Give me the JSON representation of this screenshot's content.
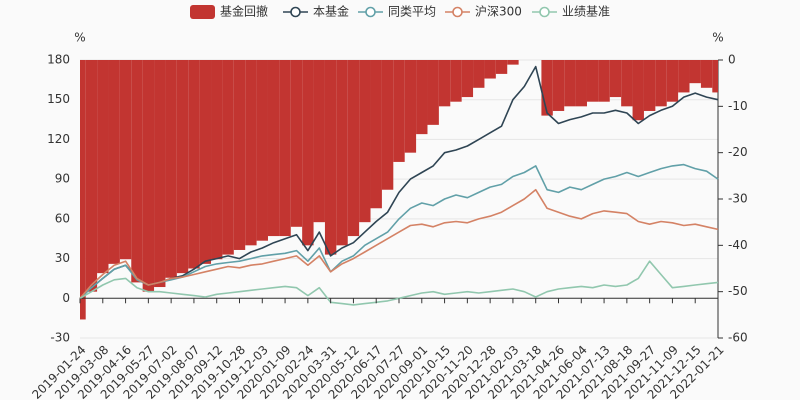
{
  "chart_data": {
    "type": "combo",
    "legend": "top",
    "grid": true,
    "y_label": "%",
    "y2_label": "%",
    "ylim": [
      -30,
      180
    ],
    "yticks": [
      -30,
      0,
      30,
      60,
      90,
      120,
      150,
      180
    ],
    "y2lim": [
      -60,
      0
    ],
    "y2ticks": [
      0,
      -10,
      -20,
      -30,
      -40,
      -50,
      -60
    ],
    "categories": [
      "2019-01-24",
      null,
      "2019-03-08",
      null,
      "2019-04-16",
      null,
      "2019-05-27",
      null,
      "2019-07-02",
      null,
      "2019-08-07",
      null,
      "2019-09-12",
      null,
      "2019-10-28",
      null,
      "2019-12-03",
      null,
      "2020-01-09",
      null,
      "2020-02-24",
      null,
      "2020-03-31",
      null,
      "2020-05-12",
      null,
      "2020-06-17",
      null,
      "2020-07-27",
      null,
      "2020-09-01",
      null,
      "2020-10-15",
      null,
      "2020-11-20",
      null,
      "2020-12-28",
      null,
      "2021-02-03",
      null,
      "2021-03-18",
      null,
      "2021-04-26",
      null,
      "2021-06-04",
      null,
      "2021-07-13",
      null,
      "2021-08-18",
      null,
      "2021-09-27",
      null,
      "2021-11-09",
      null,
      "2021-12-15",
      null,
      "2022-01-21"
    ],
    "series": [
      {
        "name": "基金回撤",
        "type": "bar",
        "axis": "y2",
        "color": "#c23531",
        "values": [
          -56,
          -50,
          -46,
          -44,
          -43,
          -48,
          -50,
          -49,
          -47,
          -46,
          -45,
          -44,
          -43,
          -42,
          -41,
          -40,
          -39,
          -38,
          -38,
          -36,
          -40,
          -35,
          -42,
          -40,
          -38,
          -35,
          -32,
          -28,
          -22,
          -20,
          -16,
          -14,
          -10,
          -9,
          -8,
          -6,
          -4,
          -3,
          -1,
          0,
          0,
          -12,
          -11,
          -10,
          -10,
          -9,
          -9,
          -8,
          -10,
          -13,
          -11,
          -10,
          -9,
          -7,
          -5,
          -6,
          -7
        ]
      },
      {
        "name": "本基金",
        "type": "line",
        "color": "#2f4554",
        "values": [
          0,
          8,
          15,
          22,
          25,
          15,
          10,
          12,
          15,
          17,
          22,
          28,
          30,
          32,
          30,
          35,
          38,
          42,
          45,
          48,
          36,
          50,
          32,
          38,
          42,
          50,
          58,
          65,
          80,
          90,
          95,
          100,
          110,
          112,
          115,
          120,
          125,
          130,
          150,
          160,
          175,
          140,
          132,
          135,
          137,
          140,
          140,
          142,
          140,
          132,
          138,
          142,
          145,
          152,
          155,
          152,
          150
        ]
      },
      {
        "name": "同类平均",
        "type": "line",
        "color": "#61a0a8",
        "values": [
          0,
          8,
          15,
          22,
          25,
          14,
          10,
          12,
          14,
          16,
          20,
          24,
          26,
          27,
          28,
          30,
          32,
          33,
          34,
          36,
          28,
          38,
          20,
          28,
          32,
          40,
          45,
          50,
          60,
          68,
          72,
          70,
          75,
          78,
          76,
          80,
          84,
          86,
          92,
          95,
          100,
          82,
          80,
          84,
          82,
          86,
          90,
          92,
          95,
          92,
          95,
          98,
          100,
          101,
          98,
          96,
          90
        ]
      },
      {
        "name": "沪深300",
        "type": "line",
        "color": "#d48265",
        "values": [
          0,
          10,
          18,
          25,
          28,
          15,
          10,
          12,
          15,
          16,
          18,
          20,
          22,
          24,
          23,
          25,
          26,
          28,
          30,
          32,
          25,
          32,
          20,
          26,
          30,
          35,
          40,
          45,
          50,
          55,
          56,
          54,
          57,
          58,
          57,
          60,
          62,
          65,
          70,
          75,
          82,
          68,
          65,
          62,
          60,
          64,
          66,
          65,
          64,
          58,
          56,
          58,
          57,
          55,
          56,
          54,
          52
        ]
      },
      {
        "name": "业绩基准",
        "type": "line",
        "color": "#91c7ae",
        "values": [
          0,
          5,
          10,
          14,
          15,
          8,
          5,
          5,
          4,
          3,
          2,
          1,
          3,
          4,
          5,
          6,
          7,
          8,
          9,
          8,
          2,
          8,
          -3,
          -4,
          -5,
          -4,
          -3,
          -2,
          0,
          2,
          4,
          5,
          3,
          4,
          5,
          4,
          5,
          6,
          7,
          5,
          1,
          5,
          7,
          8,
          9,
          8,
          10,
          9,
          10,
          15,
          28,
          18,
          8,
          9,
          10,
          11,
          12
        ]
      }
    ]
  }
}
